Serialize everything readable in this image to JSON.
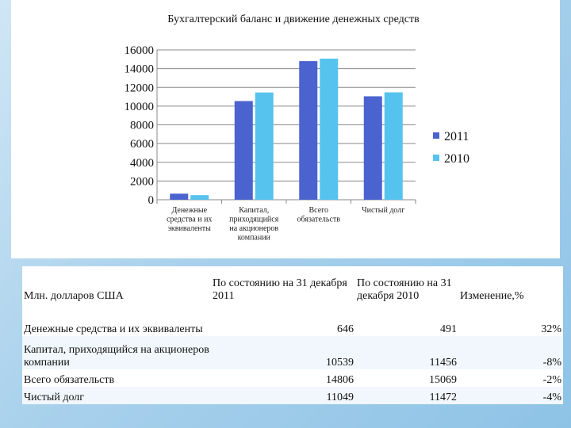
{
  "chart_data": {
    "type": "bar",
    "title": "Бухгалтерский баланс и движение денежных средств",
    "categories": [
      [
        "Денежные",
        "средства и их",
        "эквиваленты"
      ],
      [
        "Капитал,",
        "приходящийся",
        "на акционеров",
        "компании"
      ],
      [
        "Всего",
        "обязательств"
      ],
      [
        "Чистый долг"
      ]
    ],
    "series": [
      {
        "name": "2011",
        "color": "#4a63cf",
        "values": [
          646,
          10539,
          14806,
          11049
        ]
      },
      {
        "name": "2010",
        "color": "#55c3ee",
        "values": [
          491,
          11456,
          15069,
          11472
        ]
      }
    ],
    "y_ticks": [
      "16000",
      "14000",
      "12000",
      "10000",
      "8000",
      "6000",
      "4000",
      "2000",
      "0"
    ],
    "ylim": [
      0,
      16000
    ],
    "y_step": 2000,
    "grid": true,
    "legend": "right"
  },
  "table": {
    "headers": {
      "label": "Млн. долларов США",
      "col2011": "По состоянию на 31 декабря 2011",
      "col2010": "По состоянию на 31 декабря 2010",
      "change": "Изменение,%"
    },
    "rows": [
      {
        "label": "Денежные средства и их эквиваленты",
        "v2011": "646",
        "v2010": "491",
        "change": "32%"
      },
      {
        "label": "Капитал, приходящийся на акционеров компании",
        "v2011": "10539",
        "v2010": "11456",
        "change": "-8%"
      },
      {
        "label": "Всего обязательств",
        "v2011": "14806",
        "v2010": "15069",
        "change": "-2%"
      },
      {
        "label": "Чистый долг",
        "v2011": "11049",
        "v2010": "11472",
        "change": "-4%"
      }
    ]
  }
}
